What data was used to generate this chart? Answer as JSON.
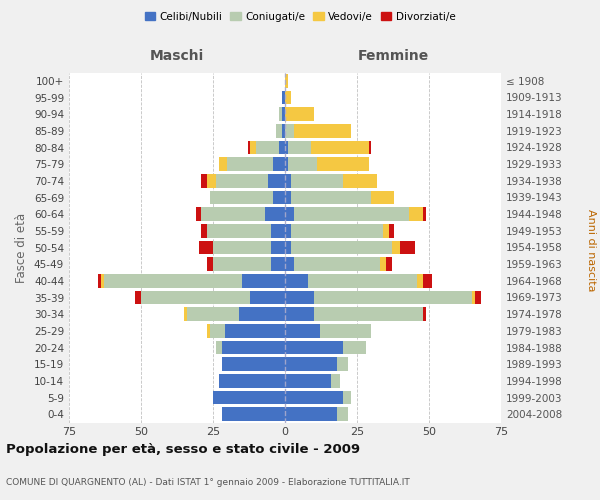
{
  "age_groups": [
    "0-4",
    "5-9",
    "10-14",
    "15-19",
    "20-24",
    "25-29",
    "30-34",
    "35-39",
    "40-44",
    "45-49",
    "50-54",
    "55-59",
    "60-64",
    "65-69",
    "70-74",
    "75-79",
    "80-84",
    "85-89",
    "90-94",
    "95-99",
    "100+"
  ],
  "birth_years": [
    "2004-2008",
    "1999-2003",
    "1994-1998",
    "1989-1993",
    "1984-1988",
    "1979-1983",
    "1974-1978",
    "1969-1973",
    "1964-1968",
    "1959-1963",
    "1954-1958",
    "1949-1953",
    "1944-1948",
    "1939-1943",
    "1934-1938",
    "1929-1933",
    "1924-1928",
    "1919-1923",
    "1914-1918",
    "1909-1913",
    "≤ 1908"
  ],
  "colors": {
    "celibe": "#4472C4",
    "coniugato": "#B8CCB0",
    "vedovo": "#F5C842",
    "divorziato": "#CC1111"
  },
  "maschi": {
    "celibe": [
      22,
      25,
      23,
      22,
      22,
      21,
      16,
      12,
      15,
      5,
      5,
      5,
      7,
      4,
      6,
      4,
      2,
      1,
      1,
      1,
      0
    ],
    "coniugato": [
      0,
      0,
      0,
      0,
      2,
      5,
      18,
      38,
      48,
      20,
      20,
      22,
      22,
      22,
      18,
      16,
      8,
      2,
      1,
      0,
      0
    ],
    "vedovo": [
      0,
      0,
      0,
      0,
      0,
      1,
      1,
      0,
      1,
      0,
      0,
      0,
      0,
      0,
      3,
      3,
      2,
      0,
      0,
      0,
      0
    ],
    "divorziato": [
      0,
      0,
      0,
      0,
      0,
      0,
      0,
      2,
      1,
      2,
      5,
      2,
      2,
      0,
      2,
      0,
      1,
      0,
      0,
      0,
      0
    ]
  },
  "femmine": {
    "nubile": [
      18,
      20,
      16,
      18,
      20,
      12,
      10,
      10,
      8,
      3,
      2,
      2,
      3,
      2,
      2,
      1,
      1,
      0,
      0,
      0,
      0
    ],
    "coniugata": [
      4,
      3,
      3,
      4,
      8,
      18,
      38,
      55,
      38,
      30,
      35,
      32,
      40,
      28,
      18,
      10,
      8,
      3,
      0,
      0,
      0
    ],
    "vedova": [
      0,
      0,
      0,
      0,
      0,
      0,
      0,
      1,
      2,
      2,
      3,
      2,
      5,
      8,
      12,
      18,
      20,
      20,
      10,
      2,
      1
    ],
    "divorziata": [
      0,
      0,
      0,
      0,
      0,
      0,
      1,
      2,
      3,
      2,
      5,
      2,
      1,
      0,
      0,
      0,
      1,
      0,
      0,
      0,
      0
    ]
  },
  "xlim": 75,
  "title": "Popolazione per età, sesso e stato civile - 2009",
  "subtitle": "COMUNE DI QUARGNENTO (AL) - Dati ISTAT 1° gennaio 2009 - Elaborazione TUTTITALIA.IT",
  "xlabel_left": "Maschi",
  "xlabel_right": "Femmine",
  "ylabel_left": "Fasce di età",
  "ylabel_right": "Anni di nascita",
  "legend_labels": [
    "Celibi/Nubili",
    "Coniugati/e",
    "Vedovi/e",
    "Divorziati/e"
  ],
  "background_color": "#f0f0f0",
  "plot_bg_color": "#ffffff"
}
